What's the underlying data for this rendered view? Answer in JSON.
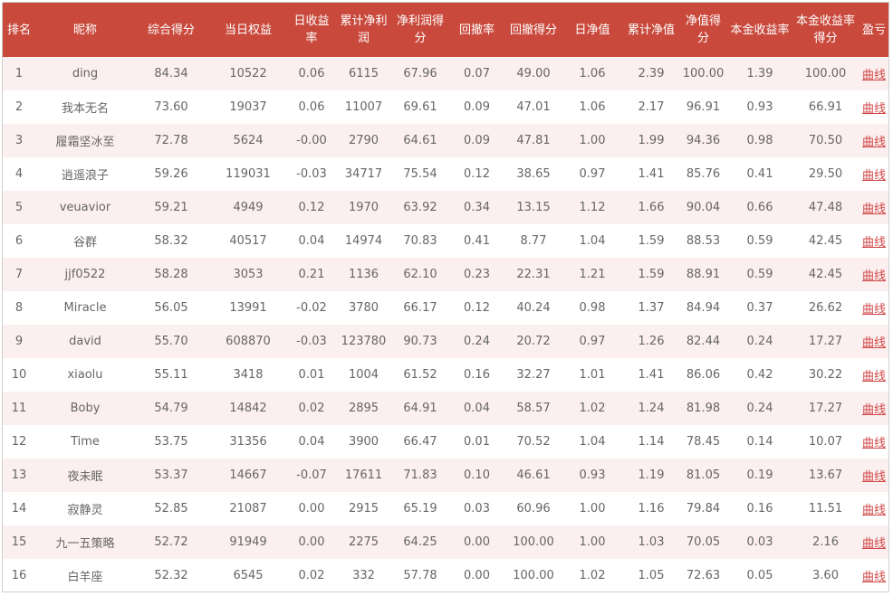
{
  "table": {
    "columns": [
      "排名",
      "昵称",
      "综合得分",
      "当日权益",
      "日收益率",
      "累计净利润",
      "净利润得分",
      "回撤率",
      "回撤得分",
      "日净值",
      "累计净值",
      "净值得分",
      "本金收益率",
      "本金收益率得分",
      "盈亏"
    ],
    "link_label": "曲线",
    "rows": [
      [
        "1",
        "ding",
        "84.34",
        "10522",
        "0.06",
        "6115",
        "67.96",
        "0.07",
        "49.00",
        "1.06",
        "2.39",
        "100.00",
        "1.39",
        "100.00"
      ],
      [
        "2",
        "我本无名",
        "73.60",
        "19037",
        "0.06",
        "11007",
        "69.61",
        "0.09",
        "47.01",
        "1.06",
        "2.17",
        "96.91",
        "0.93",
        "66.91"
      ],
      [
        "3",
        "履霜坚冰至",
        "72.78",
        "5624",
        "-0.00",
        "2790",
        "64.61",
        "0.09",
        "47.81",
        "1.00",
        "1.99",
        "94.36",
        "0.98",
        "70.50"
      ],
      [
        "4",
        "逍遥浪子",
        "59.26",
        "119031",
        "-0.03",
        "34717",
        "75.54",
        "0.12",
        "38.65",
        "0.97",
        "1.41",
        "85.76",
        "0.41",
        "29.50"
      ],
      [
        "5",
        "veuavior",
        "59.21",
        "4949",
        "0.12",
        "1970",
        "63.92",
        "0.34",
        "13.15",
        "1.12",
        "1.66",
        "90.04",
        "0.66",
        "47.48"
      ],
      [
        "6",
        "谷群",
        "58.32",
        "40517",
        "0.04",
        "14974",
        "70.83",
        "0.41",
        "8.77",
        "1.04",
        "1.59",
        "88.53",
        "0.59",
        "42.45"
      ],
      [
        "7",
        "jjf0522",
        "58.28",
        "3053",
        "0.21",
        "1136",
        "62.10",
        "0.23",
        "22.31",
        "1.21",
        "1.59",
        "88.91",
        "0.59",
        "42.45"
      ],
      [
        "8",
        "Miracle",
        "56.05",
        "13991",
        "-0.02",
        "3780",
        "66.17",
        "0.12",
        "40.24",
        "0.98",
        "1.37",
        "84.94",
        "0.37",
        "26.62"
      ],
      [
        "9",
        "david",
        "55.70",
        "608870",
        "-0.03",
        "123780",
        "90.73",
        "0.24",
        "20.72",
        "0.97",
        "1.26",
        "82.44",
        "0.24",
        "17.27"
      ],
      [
        "10",
        "xiaolu",
        "55.11",
        "3418",
        "0.01",
        "1004",
        "61.52",
        "0.16",
        "32.27",
        "1.01",
        "1.41",
        "86.06",
        "0.42",
        "30.22"
      ],
      [
        "11",
        "Boby",
        "54.79",
        "14842",
        "0.02",
        "2895",
        "64.91",
        "0.04",
        "58.57",
        "1.02",
        "1.24",
        "81.98",
        "0.24",
        "17.27"
      ],
      [
        "12",
        "Time",
        "53.75",
        "31356",
        "0.04",
        "3900",
        "66.47",
        "0.01",
        "70.52",
        "1.04",
        "1.14",
        "78.45",
        "0.14",
        "10.07"
      ],
      [
        "13",
        "夜未眠",
        "53.37",
        "14667",
        "-0.07",
        "17611",
        "71.83",
        "0.10",
        "46.61",
        "0.93",
        "1.19",
        "81.05",
        "0.19",
        "13.67"
      ],
      [
        "14",
        "寂静灵",
        "52.85",
        "21087",
        "0.00",
        "2915",
        "65.19",
        "0.03",
        "60.96",
        "1.00",
        "1.16",
        "79.84",
        "0.16",
        "11.51"
      ],
      [
        "15",
        "九一五策略",
        "52.72",
        "91949",
        "0.00",
        "2275",
        "64.25",
        "0.00",
        "100.00",
        "1.00",
        "1.03",
        "70.05",
        "0.03",
        "2.16"
      ],
      [
        "16",
        "白羊座",
        "52.32",
        "6545",
        "0.02",
        "332",
        "57.78",
        "0.00",
        "100.00",
        "1.02",
        "1.05",
        "72.63",
        "0.05",
        "3.60"
      ]
    ]
  },
  "colors": {
    "header_bg": "#c94a3d",
    "row_alt_bg": "#fcefef",
    "text": "#666666",
    "link": "#d04848"
  }
}
